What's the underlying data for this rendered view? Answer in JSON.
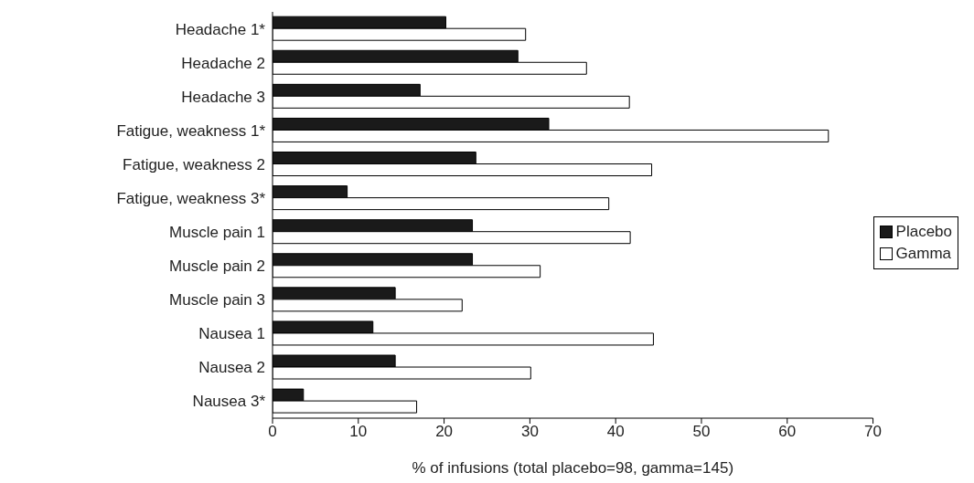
{
  "chart_data": {
    "type": "bar",
    "orientation": "horizontal",
    "xlabel": "% of infusions (total placebo=98, gamma=145)",
    "categories": [
      "Headache 1*",
      "Headache 2",
      "Headache 3",
      "Fatigue, weakness 1*",
      "Fatigue, weakness 2",
      "Fatigue, weakness 3*",
      "Muscle pain 1",
      "Muscle pain 2",
      "Muscle pain 3",
      "Nausea 1",
      "Nausea 2",
      "Nausea 3*"
    ],
    "series": [
      {
        "name": "Placebo",
        "color": "#1a1a1a",
        "values": [
          20.2,
          28.6,
          17.2,
          32.2,
          23.7,
          8.7,
          23.3,
          23.3,
          14.3,
          11.7,
          14.3,
          3.6
        ]
      },
      {
        "name": "Gamma",
        "color": "#ffffff",
        "values": [
          29.5,
          36.6,
          41.6,
          64.8,
          44.2,
          39.2,
          41.7,
          31.2,
          22.1,
          44.4,
          30.1,
          16.8
        ]
      }
    ],
    "xlim": [
      0,
      70
    ],
    "xticks": [
      0,
      10,
      20,
      30,
      40,
      50,
      60,
      70
    ],
    "grid": false,
    "legend": "right"
  }
}
